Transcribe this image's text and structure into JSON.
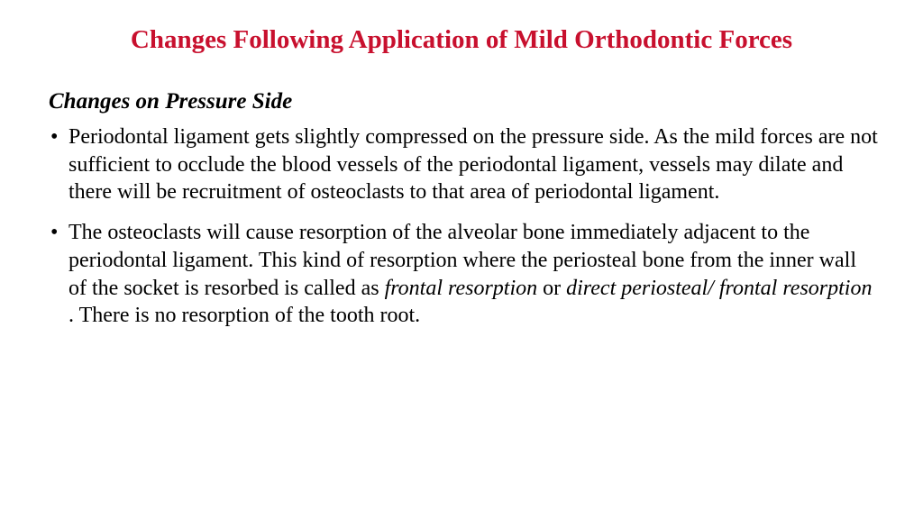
{
  "title": "Changes Following Application of Mild Orthodontic Forces",
  "subtitle": "Changes on Pressure Side",
  "bullets": {
    "b1": "Periodontal ligament gets slightly compressed on the pressure side. As the mild forces are not sufficient to occlude the blood vessels of the periodontal ligament, vessels may dilate and there will be recruitment of osteoclasts to that area of periodontal ligament.",
    "b2_pre": "The osteoclasts will cause resorption of the alveolar bone immediately adjacent to the periodontal ligament. This kind of resorption where the periosteal bone from the inner wall of the socket is resorbed is called as ",
    "b2_it1": "frontal resorption",
    "b2_mid": " or ",
    "b2_it2": "direct periosteal/ frontal resorption ",
    "b2_post": ". There is no resorption of the tooth root."
  },
  "colors": {
    "title_color": "#c8102e",
    "text_color": "#000000",
    "background": "#ffffff"
  },
  "typography": {
    "title_fontsize": 29,
    "subtitle_fontsize": 25,
    "body_fontsize": 24,
    "font_family": "Times New Roman"
  }
}
